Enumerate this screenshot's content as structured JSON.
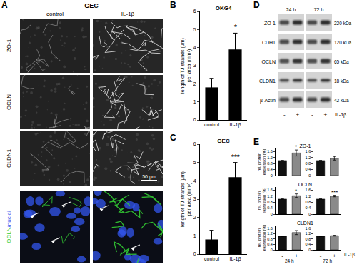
{
  "panel_a": {
    "label": "A",
    "title": "GEC",
    "columns": [
      "control",
      "IL-1β"
    ],
    "rows": [
      "ZO-1",
      "OCLN",
      "CLDN1"
    ],
    "overlay_label": [
      {
        "text": "OCLN",
        "color": "#33cc33"
      },
      {
        "text": "/nuclei",
        "color": "#3355ee"
      }
    ],
    "scale_bar": "50 µm"
  },
  "chart_data": [
    {
      "label": "B",
      "type": "bar",
      "title": "OKG4",
      "categories": [
        "control",
        "IL-1β"
      ],
      "values": [
        1.8,
        3.9
      ],
      "errors": [
        0.5,
        0.9
      ],
      "color": "#000000",
      "ylim": [
        0,
        6
      ],
      "yticks": [
        0,
        1,
        2,
        3,
        4,
        5,
        6
      ],
      "y_label": [
        "length of TJ strands (µm)",
        "per area (mm²)"
      ],
      "annotations": [
        {
          "category": "IL-1β",
          "text": "*"
        }
      ]
    },
    {
      "label": "C",
      "type": "bar",
      "title": "GEC",
      "categories": [
        "control",
        "IL-1β"
      ],
      "values": [
        0.8,
        4.2
      ],
      "errors": [
        0.5,
        0.8
      ],
      "color": "#000000",
      "ylim": [
        0,
        6
      ],
      "yticks": [
        0,
        1,
        2,
        3,
        4,
        5,
        6
      ],
      "y_label": [
        "length of TJ strands (µm)",
        "per area (mm²)"
      ],
      "annotations": [
        {
          "category": "IL-1β",
          "text": "***"
        }
      ]
    }
  ],
  "panel_d": {
    "label": "D",
    "times": [
      "24 h",
      "72 h"
    ],
    "rows": [
      {
        "name": "ZO-1",
        "size": "220 kDa"
      },
      {
        "name": "CDH1",
        "size": "120 kDa"
      },
      {
        "name": "OCLN",
        "size": "65 kDa"
      },
      {
        "name": "CLDN1",
        "size": "18 kDa"
      },
      {
        "name": "β-Actin",
        "size": "42 kDa"
      }
    ],
    "lanes": [
      "-",
      "+",
      "-",
      "+"
    ],
    "treatment": "IL-1β"
  },
  "panel_e": {
    "label": "E",
    "treatment": "IL-1β",
    "rows": [
      {
        "title": "ZO-1",
        "y_label": [
          "rel. protein",
          "expression (%)"
        ],
        "charts": [
          {
            "type": "bar",
            "categories": [
              "-",
              "+"
            ],
            "values": [
              1.0,
              1.5
            ],
            "errors": [
              0,
              0.2
            ],
            "colors": [
              "#111111",
              "#8a8a8a"
            ],
            "ylim": [
              0,
              1.8
            ],
            "yticks": [
              0,
              0.4,
              0.8,
              1.2,
              1.6
            ],
            "tick_labels": "y",
            "annotations": [
              {
                "category": "+",
                "text": "*"
              }
            ]
          },
          {
            "type": "bar",
            "categories": [
              "-",
              "+"
            ],
            "values": [
              1.0,
              1.15
            ],
            "errors": [
              0,
              0.12
            ],
            "colors": [
              "#111111",
              "#8a8a8a"
            ],
            "ylim": [
              0,
              1.8
            ],
            "yticks": [
              0,
              0.4,
              0.8,
              1.2,
              1.6
            ],
            "tick_labels": "y",
            "annotations": []
          }
        ]
      },
      {
        "title": "OCLN",
        "y_label": [
          "rel. protein",
          "expression (%)"
        ],
        "charts": [
          {
            "type": "bar",
            "categories": [
              "-",
              "+"
            ],
            "values": [
              1.0,
              1.22
            ],
            "errors": [
              0,
              0.12
            ],
            "colors": [
              "#111111",
              "#8a8a8a"
            ],
            "ylim": [
              0,
              1.8
            ],
            "yticks": [
              0,
              0.4,
              0.8,
              1.2,
              1.6
            ],
            "tick_labels": "y",
            "annotations": [
              {
                "category": "+",
                "text": "*"
              }
            ]
          },
          {
            "type": "bar",
            "categories": [
              "-",
              "+"
            ],
            "values": [
              1.0,
              1.2
            ],
            "errors": [
              0,
              0.05
            ],
            "colors": [
              "#111111",
              "#8a8a8a"
            ],
            "ylim": [
              0,
              1.8
            ],
            "yticks": [
              0,
              0.4,
              0.8,
              1.2,
              1.6
            ],
            "tick_labels": "y",
            "annotations": [
              {
                "category": "+",
                "text": "***"
              }
            ]
          }
        ]
      },
      {
        "title": "CLDN1",
        "y_label": [
          "rel. protein",
          "expression (%)"
        ],
        "charts": [
          {
            "type": "bar",
            "categories": [
              "-",
              "+"
            ],
            "values": [
              1.0,
              1.28
            ],
            "errors": [
              0,
              0.15
            ],
            "colors": [
              "#111111",
              "#8a8a8a"
            ],
            "ylim": [
              0,
              1.8
            ],
            "yticks": [
              0,
              0.4,
              0.8,
              1.2,
              1.6
            ],
            "x_label": "24 h",
            "annotations": []
          },
          {
            "type": "bar",
            "categories": [
              "-",
              "+"
            ],
            "values": [
              1.0,
              1.05
            ],
            "errors": [
              0,
              0.03
            ],
            "colors": [
              "#111111",
              "#8a8a8a"
            ],
            "ylim": [
              0,
              1.8
            ],
            "yticks": [
              0,
              0.4,
              0.8,
              1.2,
              1.6
            ],
            "x_label": "72 h",
            "annotations": []
          }
        ]
      }
    ]
  }
}
